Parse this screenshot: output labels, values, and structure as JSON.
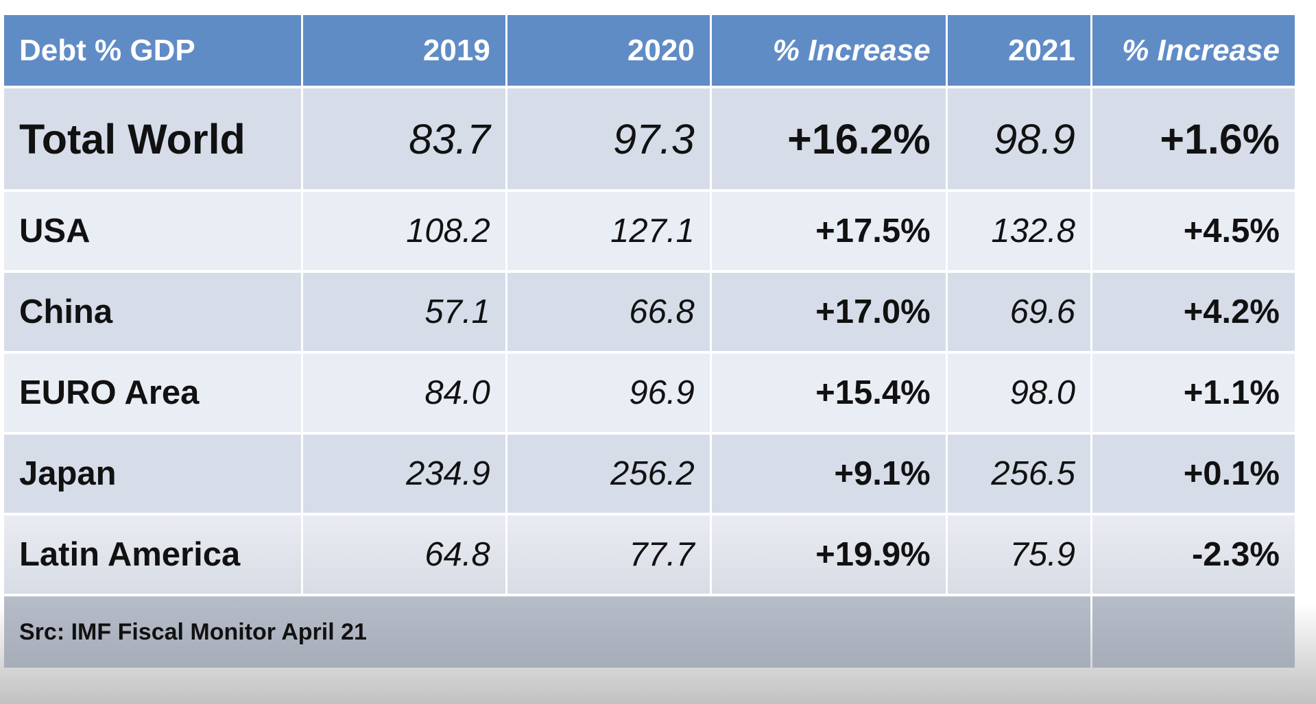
{
  "table": {
    "headers": [
      "Debt % GDP",
      "2019",
      "2020",
      "% Increase",
      "2021",
      "% Increase"
    ],
    "rows": [
      {
        "label": "Total World",
        "y2019": "83.7",
        "y2020": "97.3",
        "inc2020": "+16.2%",
        "y2021": "98.9",
        "inc2021": "+1.6%"
      },
      {
        "label": "USA",
        "y2019": "108.2",
        "y2020": "127.1",
        "inc2020": "+17.5%",
        "y2021": "132.8",
        "inc2021": "+4.5%"
      },
      {
        "label": "China",
        "y2019": "57.1",
        "y2020": "66.8",
        "inc2020": "+17.0%",
        "y2021": "69.6",
        "inc2021": "+4.2%"
      },
      {
        "label": "EURO Area",
        "y2019": "84.0",
        "y2020": "96.9",
        "inc2020": "+15.4%",
        "y2021": "98.0",
        "inc2021": "+1.1%"
      },
      {
        "label": "Japan",
        "y2019": "234.9",
        "y2020": "256.2",
        "inc2020": "+9.1%",
        "y2021": "256.5",
        "inc2021": "+0.1%"
      },
      {
        "label": "Latin America",
        "y2019": "64.8",
        "y2020": "77.7",
        "inc2020": "+19.9%",
        "y2021": "75.9",
        "inc2021": "-2.3%"
      }
    ],
    "source": "Src: IMF Fiscal Monitor April 21"
  },
  "colors": {
    "header": "#608cc6",
    "row_dark": "#d6dde9",
    "row_light": "#e9edf4",
    "footer": "#adb4c0"
  }
}
